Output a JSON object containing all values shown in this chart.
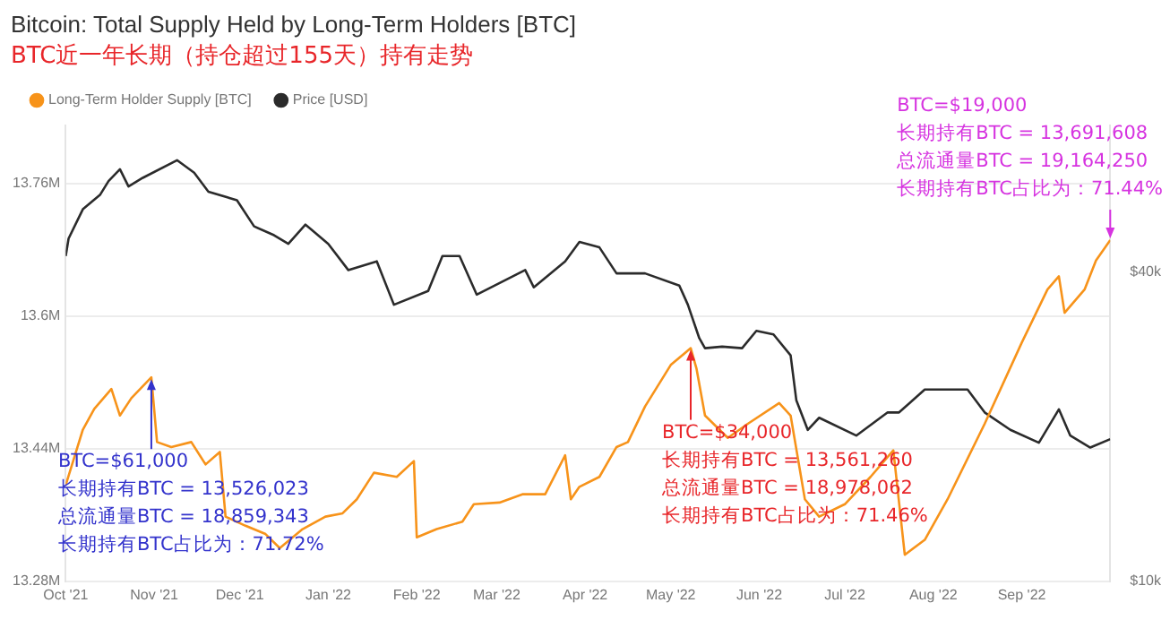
{
  "chart_data": {
    "type": "line",
    "title": "Bitcoin: Total Supply Held by Long-Term Holders [BTC]",
    "subtitle": "BTC近一年长期（持仓超过155天）持有走势",
    "series": [
      {
        "name": "Long-Term Holder Supply [BTC]",
        "color": "#f7931a",
        "axis": "y",
        "x": [
          "2021-10-01",
          "2021-10-07",
          "2021-10-11",
          "2021-10-17",
          "2021-10-20",
          "2021-10-24",
          "2021-10-31",
          "2021-11-02",
          "2021-11-07",
          "2021-11-14",
          "2021-11-19",
          "2021-11-24",
          "2021-11-26",
          "2021-12-03",
          "2021-12-10",
          "2021-12-15",
          "2021-12-23",
          "2021-12-31",
          "2022-01-06",
          "2022-01-11",
          "2022-01-17",
          "2022-01-25",
          "2022-01-31",
          "2022-02-01",
          "2022-02-08",
          "2022-02-17",
          "2022-02-21",
          "2022-03-02",
          "2022-03-10",
          "2022-03-18",
          "2022-03-25",
          "2022-03-27",
          "2022-03-30",
          "2022-04-06",
          "2022-04-12",
          "2022-04-16",
          "2022-04-22",
          "2022-05-01",
          "2022-05-08",
          "2022-05-10",
          "2022-05-13",
          "2022-05-21",
          "2022-05-28",
          "2022-06-08",
          "2022-06-12",
          "2022-06-17",
          "2022-06-22",
          "2022-07-01",
          "2022-07-10",
          "2022-07-18",
          "2022-07-22",
          "2022-07-29",
          "2022-08-06",
          "2022-08-19",
          "2022-09-01",
          "2022-09-10",
          "2022-09-14",
          "2022-09-16",
          "2022-09-23",
          "2022-09-27",
          "2022-10-02"
        ],
        "values": [
          13396000,
          13463000,
          13488000,
          13512000,
          13480000,
          13501000,
          13526023,
          13448000,
          13442000,
          13448000,
          13421000,
          13436000,
          13358000,
          13347000,
          13337000,
          13320000,
          13343000,
          13358000,
          13362000,
          13379000,
          13411000,
          13406000,
          13425000,
          13333000,
          13343000,
          13352000,
          13373000,
          13375000,
          13385000,
          13385000,
          13432000,
          13379000,
          13394000,
          13406000,
          13442000,
          13448000,
          13491000,
          13541000,
          13561260,
          13537000,
          13480000,
          13453000,
          13470000,
          13495000,
          13480000,
          13379000,
          13358000,
          13373000,
          13406000,
          13438000,
          13312000,
          13330000,
          13379000,
          13470000,
          13568000,
          13632000,
          13648000,
          13604000,
          13632000,
          13667000,
          13691608
        ]
      },
      {
        "name": "Price [USD]",
        "color": "#2b2b2b",
        "axis": "y2",
        "x": [
          "2021-10-01",
          "2021-10-02",
          "2021-10-07",
          "2021-10-13",
          "2021-10-16",
          "2021-10-20",
          "2021-10-23",
          "2021-10-28",
          "2021-11-09",
          "2021-11-15",
          "2021-11-20",
          "2021-11-30",
          "2021-12-06",
          "2021-12-13",
          "2021-12-18",
          "2021-12-24",
          "2022-01-01",
          "2022-01-08",
          "2022-01-18",
          "2022-01-24",
          "2022-02-05",
          "2022-02-10",
          "2022-02-16",
          "2022-02-22",
          "2022-03-11",
          "2022-03-14",
          "2022-03-25",
          "2022-03-30",
          "2022-04-06",
          "2022-04-12",
          "2022-04-22",
          "2022-05-04",
          "2022-05-07",
          "2022-05-11",
          "2022-05-13",
          "2022-05-19",
          "2022-05-26",
          "2022-05-31",
          "2022-06-06",
          "2022-06-12",
          "2022-06-14",
          "2022-06-18",
          "2022-06-22",
          "2022-07-05",
          "2022-07-16",
          "2022-07-20",
          "2022-07-29",
          "2022-08-13",
          "2022-08-19",
          "2022-08-28",
          "2022-09-07",
          "2022-09-14",
          "2022-09-18",
          "2022-09-25",
          "2022-10-02"
        ],
        "values": [
          42900,
          46400,
          52900,
          56400,
          60000,
          63300,
          58600,
          60900,
          65900,
          62300,
          57200,
          55100,
          49000,
          47100,
          45300,
          49400,
          45300,
          40300,
          41900,
          34500,
          36700,
          42900,
          42900,
          36100,
          40300,
          37300,
          41900,
          45700,
          44600,
          39700,
          39700,
          37600,
          34500,
          29700,
          28400,
          28600,
          28400,
          30700,
          30200,
          27500,
          22500,
          19700,
          20800,
          19200,
          21300,
          21300,
          23600,
          23600,
          21300,
          19700,
          18600,
          21600,
          19200,
          18200,
          18900
        ]
      }
    ],
    "xlim": [
      "2021-10-01",
      "2022-10-02"
    ],
    "xticks": [
      {
        "value": "2021-10-01",
        "label": "Oct '21"
      },
      {
        "value": "2021-11-01",
        "label": "Nov '21"
      },
      {
        "value": "2021-12-01",
        "label": "Dec '21"
      },
      {
        "value": "2022-01-01",
        "label": "Jan '22"
      },
      {
        "value": "2022-02-01",
        "label": "Feb '22"
      },
      {
        "value": "2022-03-01",
        "label": "Mar '22"
      },
      {
        "value": "2022-04-01",
        "label": "Apr '22"
      },
      {
        "value": "2022-05-01",
        "label": "May '22"
      },
      {
        "value": "2022-06-01",
        "label": "Jun '22"
      },
      {
        "value": "2022-07-01",
        "label": "Jul '22"
      },
      {
        "value": "2022-08-01",
        "label": "Aug '22"
      },
      {
        "value": "2022-09-01",
        "label": "Sep '22"
      }
    ],
    "ylim": [
      13280000,
      13830000
    ],
    "yticks": [
      {
        "value": 13280000,
        "label": "13.28M"
      },
      {
        "value": 13440000,
        "label": "13.44M"
      },
      {
        "value": 13600000,
        "label": "13.6M"
      },
      {
        "value": 13760000,
        "label": "13.76M"
      }
    ],
    "y2lim": [
      10000,
      77000
    ],
    "y2ticks": [
      {
        "value": 10000,
        "label": "$10k"
      },
      {
        "value": 40000,
        "label": "$40k"
      }
    ],
    "log": "y2",
    "grid": "y",
    "legend": "top left",
    "marker": "none",
    "line_style": "solid",
    "annotations": [
      {
        "text": "BTC=$61,000\n长期持有BTC = 13,526,023\n总流通量BTC = 18,859,343\n长期持有BTC占比为：71.72%",
        "x": "2021-10-31",
        "y": 13526023
      },
      {
        "text": "BTC=$34,000\n长期持有BTC = 13,561,260\n总流通量BTC = 18,978,062\n长期持有BTC占比为：71.46%",
        "x": "2022-05-08",
        "y": 13561260
      },
      {
        "text": "BTC=$19,000\n长期持有BTC = 13,691,608\n总流通量BTC = 19,164,250\n长期持有BTC占比为：71.44%",
        "x": "2022-10-02",
        "y": 13691608
      }
    ]
  }
}
